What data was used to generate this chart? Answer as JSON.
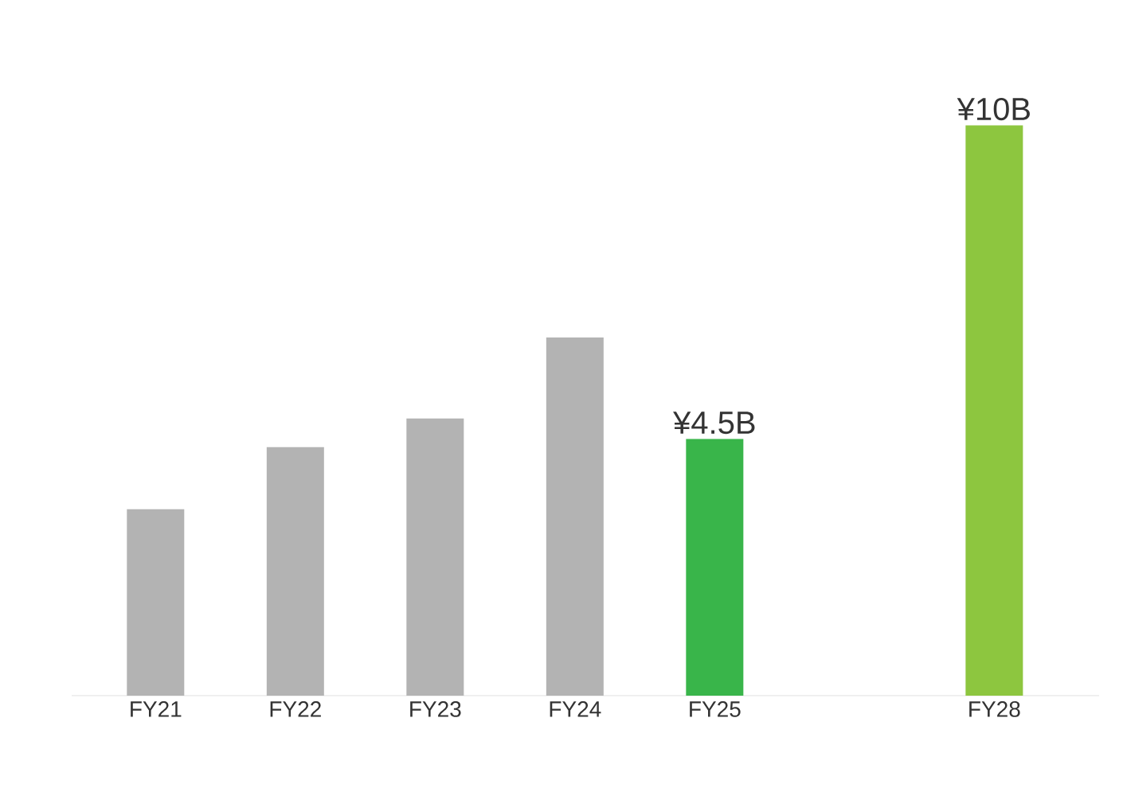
{
  "chart_data": {
    "type": "bar",
    "categories": [
      "FY21",
      "FY22",
      "FY23",
      "FY24",
      "FY25",
      null,
      "FY28"
    ],
    "values": [
      3.27,
      4.36,
      4.86,
      6.28,
      4.5,
      null,
      10
    ],
    "colors": [
      "#b3b3b3",
      "#b3b3b3",
      "#b3b3b3",
      "#b3b3b3",
      "#39b54a",
      "#b3b3b3",
      "#8dc63f"
    ],
    "value_labels": [
      null,
      null,
      null,
      null,
      "¥4.5B",
      null,
      "¥10B"
    ]
  }
}
